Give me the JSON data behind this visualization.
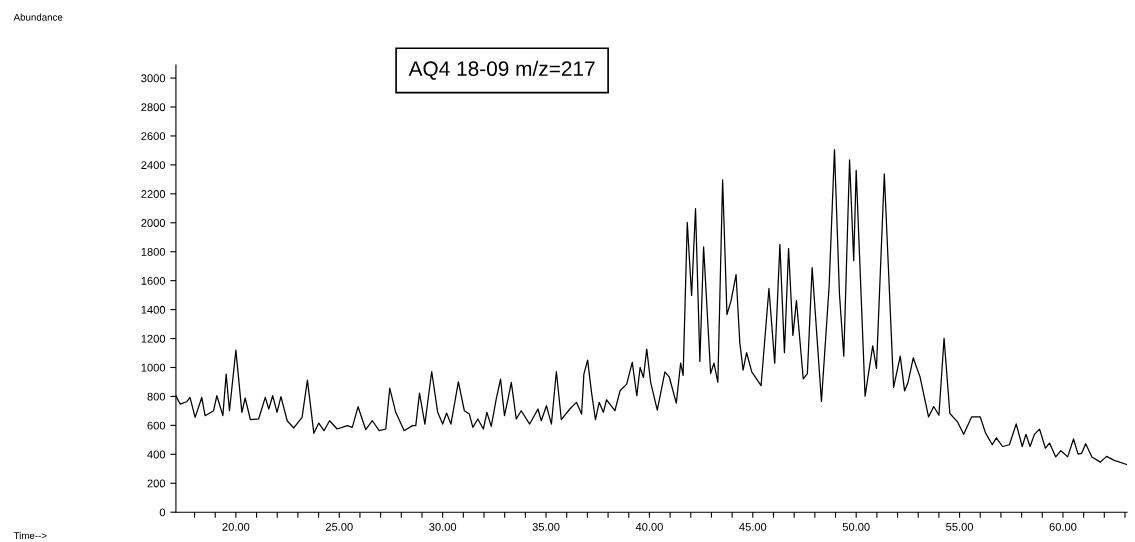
{
  "chart_data": {
    "type": "line",
    "title": "AQ4 18-09 m/z=217",
    "annotations": [
      "Abundance",
      "Time-->"
    ],
    "xlim": [
      17.1,
      63.1
    ],
    "ylim": [
      0,
      3090
    ],
    "yticks": [
      0,
      200,
      400,
      600,
      800,
      1000,
      1200,
      1400,
      1600,
      1800,
      2000,
      2200,
      2400,
      2600,
      2800,
      3000
    ],
    "xticks": [
      {
        "value": 18,
        "label": null
      },
      {
        "value": 19,
        "label": null
      },
      {
        "value": 20,
        "label": "20.00"
      },
      {
        "value": 21,
        "label": null
      },
      {
        "value": 22,
        "label": null
      },
      {
        "value": 23,
        "label": null
      },
      {
        "value": 24,
        "label": null
      },
      {
        "value": 25,
        "label": "25.00"
      },
      {
        "value": 26,
        "label": null
      },
      {
        "value": 27,
        "label": null
      },
      {
        "value": 28,
        "label": null
      },
      {
        "value": 29,
        "label": null
      },
      {
        "value": 30,
        "label": "30.00"
      },
      {
        "value": 31,
        "label": null
      },
      {
        "value": 32,
        "label": null
      },
      {
        "value": 33,
        "label": null
      },
      {
        "value": 34,
        "label": null
      },
      {
        "value": 35,
        "label": "35.00"
      },
      {
        "value": 36,
        "label": null
      },
      {
        "value": 37,
        "label": null
      },
      {
        "value": 38,
        "label": null
      },
      {
        "value": 39,
        "label": null
      },
      {
        "value": 40,
        "label": "40.00"
      },
      {
        "value": 41,
        "label": null
      },
      {
        "value": 42,
        "label": null
      },
      {
        "value": 43,
        "label": null
      },
      {
        "value": 44,
        "label": null
      },
      {
        "value": 45,
        "label": "45.00"
      },
      {
        "value": 46,
        "label": null
      },
      {
        "value": 47,
        "label": null
      },
      {
        "value": 48,
        "label": null
      },
      {
        "value": 49,
        "label": null
      },
      {
        "value": 50,
        "label": "50.00"
      },
      {
        "value": 51,
        "label": null
      },
      {
        "value": 52,
        "label": null
      },
      {
        "value": 53,
        "label": null
      },
      {
        "value": 54,
        "label": null
      },
      {
        "value": 55,
        "label": "55.00"
      },
      {
        "value": 56,
        "label": null
      },
      {
        "value": 57,
        "label": null
      },
      {
        "value": 58,
        "label": null
      },
      {
        "value": 59,
        "label": null
      },
      {
        "value": 60,
        "label": "60.00"
      },
      {
        "value": 61,
        "label": null
      },
      {
        "value": 62,
        "label": null
      },
      {
        "value": 63,
        "label": null
      }
    ],
    "grid": false,
    "legend": false,
    "series": [
      {
        "color": "#000000",
        "x": [
          17.1,
          17.3,
          17.62,
          17.78,
          18.03,
          18.35,
          18.51,
          18.92,
          19.08,
          19.37,
          19.53,
          19.69,
          20.0,
          20.29,
          20.45,
          20.7,
          21.1,
          21.42,
          21.59,
          21.78,
          21.99,
          22.18,
          22.48,
          22.8,
          23.2,
          23.46,
          23.77,
          24.01,
          24.26,
          24.53,
          24.9,
          25.39,
          25.63,
          25.91,
          26.28,
          26.6,
          26.93,
          27.25,
          27.44,
          27.73,
          28.14,
          28.54,
          28.7,
          28.88,
          29.14,
          29.47,
          29.76,
          30.0,
          30.19,
          30.4,
          30.76,
          31.05,
          31.29,
          31.46,
          31.7,
          31.97,
          32.14,
          32.35,
          32.59,
          32.8,
          32.99,
          33.16,
          33.32,
          33.56,
          33.8,
          34.21,
          34.61,
          34.77,
          35.02,
          35.26,
          35.5,
          35.74,
          36.15,
          36.47,
          36.72,
          36.83,
          37.01,
          37.2,
          37.39,
          37.57,
          37.77,
          37.93,
          38.33,
          38.58,
          38.9,
          39.17,
          39.39,
          39.55,
          39.71,
          39.87,
          40.06,
          40.38,
          40.75,
          40.96,
          41.3,
          41.51,
          41.63,
          41.83,
          42.04,
          42.23,
          42.44,
          42.62,
          42.96,
          43.12,
          43.31,
          43.54,
          43.75,
          43.95,
          44.19,
          44.37,
          44.53,
          44.7,
          44.95,
          45.4,
          45.78,
          46.06,
          46.31,
          46.53,
          46.73,
          46.94,
          47.11,
          47.44,
          47.64,
          47.87,
          48.32,
          48.69,
          48.95,
          49.19,
          49.4,
          49.68,
          49.88,
          50.0,
          50.43,
          50.8,
          50.98,
          51.36,
          51.81,
          52.13,
          52.34,
          52.51,
          52.76,
          53.09,
          53.5,
          53.75,
          54.0,
          54.25,
          54.53,
          54.91,
          55.2,
          55.58,
          56.0,
          56.25,
          56.58,
          56.78,
          57.08,
          57.41,
          57.74,
          58.03,
          58.21,
          58.41,
          58.62,
          58.87,
          59.15,
          59.35,
          59.65,
          59.9,
          60.23,
          60.51,
          60.73,
          60.9,
          61.1,
          61.4,
          61.81,
          62.11,
          62.48,
          63.09
        ],
        "values": [
          805,
          747,
          763,
          793,
          655,
          793,
          667,
          701,
          805,
          667,
          954,
          701,
          1120,
          690,
          789,
          639,
          644,
          793,
          713,
          805,
          690,
          798,
          632,
          582,
          655,
          913,
          545,
          616,
          563,
          632,
          575,
          598,
          586,
          729,
          570,
          632,
          563,
          575,
          858,
          690,
          563,
          598,
          598,
          823,
          609,
          972,
          690,
          609,
          685,
          609,
          901,
          701,
          678,
          586,
          644,
          575,
          690,
          593,
          782,
          920,
          667,
          782,
          897,
          644,
          701,
          609,
          713,
          632,
          736,
          609,
          972,
          639,
          713,
          759,
          678,
          954,
          1051,
          828,
          639,
          759,
          690,
          777,
          701,
          839,
          885,
          1035,
          805,
          1000,
          931,
          1127,
          897,
          706,
          970,
          934,
          754,
          1030,
          946,
          2002,
          1498,
          2098,
          1042,
          1834,
          958,
          1030,
          898,
          2297,
          1366,
          1462,
          1642,
          1174,
          982,
          1102,
          970,
          874,
          1546,
          1030,
          1850,
          1102,
          1822,
          1222,
          1462,
          922,
          958,
          1690,
          766,
          1558,
          2506,
          1510,
          1078,
          2434,
          1738,
          2362,
          802,
          1150,
          994,
          2338,
          862,
          1078,
          838,
          898,
          1066,
          934,
          658,
          730,
          670,
          1202,
          682,
          622,
          538,
          658,
          658,
          550,
          466,
          514,
          454,
          466,
          610,
          454,
          538,
          454,
          538,
          574,
          442,
          478,
          382,
          425,
          382,
          506,
          401,
          406,
          473,
          382,
          346,
          386,
          358,
          329
        ]
      }
    ]
  }
}
